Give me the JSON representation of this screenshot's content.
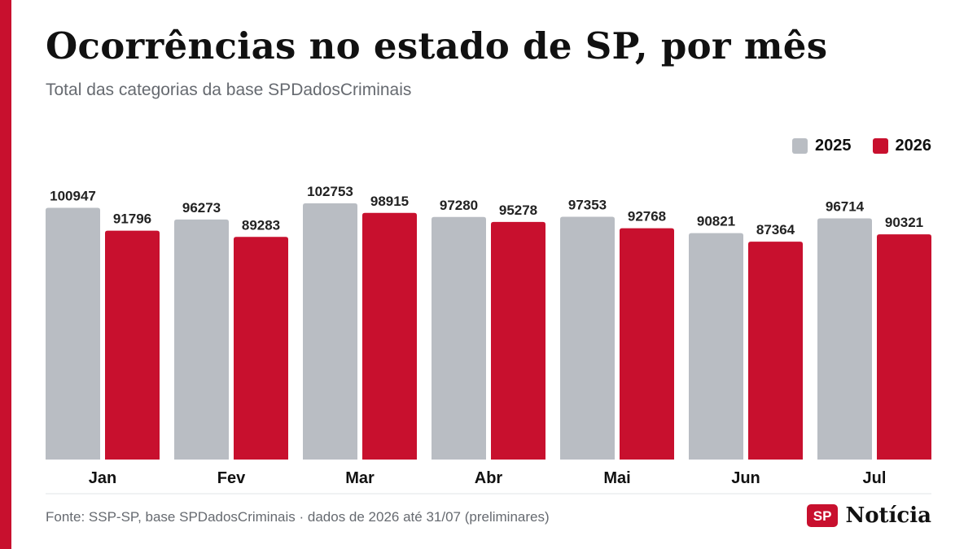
{
  "colors": {
    "accent": "#c8102e",
    "series_2025": "#b9bdc3",
    "series_2026": "#c8102e",
    "divider": "#e2e4e7"
  },
  "header": {
    "title": "Ocorrências no estado de SP, por mês",
    "subtitle": "Total das categorias da base SPDadosCriminais"
  },
  "legend": {
    "items": [
      {
        "label": "2025",
        "color": "#b9bdc3"
      },
      {
        "label": "2026",
        "color": "#c8102e"
      }
    ]
  },
  "chart_data": {
    "type": "bar",
    "title": "Ocorrências no estado de SP, por mês",
    "subtitle": "Total das categorias da base SPDadosCriminais",
    "categories": [
      "Jan",
      "Fev",
      "Mar",
      "Abr",
      "Mai",
      "Jun",
      "Jul"
    ],
    "series": [
      {
        "name": "2025",
        "color": "#b9bdc3",
        "values": [
          100947,
          96273,
          102753,
          97280,
          97353,
          90821,
          96714
        ]
      },
      {
        "name": "2026",
        "color": "#c8102e",
        "values": [
          91796,
          89283,
          98915,
          95278,
          92768,
          87364,
          90321
        ]
      }
    ],
    "ylim": [
      0,
      102753
    ],
    "grid": false,
    "legend_position": "top-right",
    "data_labels": true
  },
  "footer": {
    "source": "Fonte: SSP-SP, base SPDadosCriminais · dados de 2026 até 31/07 (preliminares)",
    "brand_badge": "SP",
    "brand_name": "Notícia"
  }
}
